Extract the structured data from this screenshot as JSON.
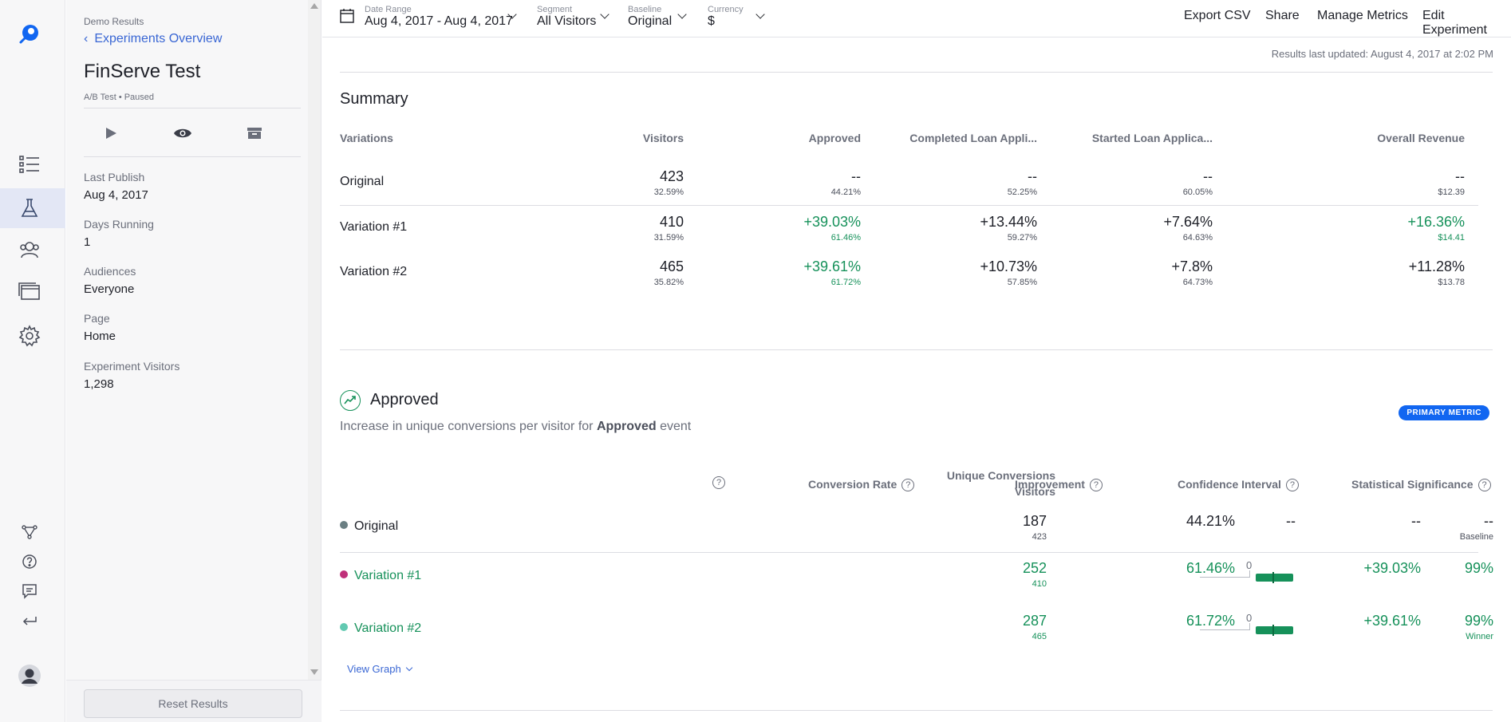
{
  "colors": {
    "brand": "#1166f1",
    "link": "#3a67d4",
    "positive": "#16915a",
    "original_dot": "#6b7f83",
    "var1_dot": "#c0307a",
    "var2_dot": "#62c9b1"
  },
  "rail": {
    "icons": [
      "rocket-logo-icon",
      "list-icon",
      "flask-icon",
      "audiences-icon",
      "pages-icon",
      "settings-icon",
      "integrations-icon",
      "help-icon",
      "feedback-icon",
      "exit-icon",
      "user-avatar-icon"
    ]
  },
  "side": {
    "crumb": "Demo Results",
    "back_link": "Experiments Overview",
    "title": "FinServe Test",
    "meta": "A/B Test • Paused",
    "stats": [
      {
        "label": "Last Publish",
        "value": "Aug 4, 2017"
      },
      {
        "label": "Days Running",
        "value": "1"
      },
      {
        "label": "Audiences",
        "value": "Everyone"
      },
      {
        "label": "Page",
        "value": "Home"
      },
      {
        "label": "Experiment Visitors",
        "value": "1,298"
      }
    ],
    "reset_label": "Reset Results"
  },
  "topbar": {
    "date_range": {
      "label": "Date Range",
      "value": "Aug 4, 2017 - Aug 4, 2017"
    },
    "segment": {
      "label": "Segment",
      "value": "All Visitors"
    },
    "baseline": {
      "label": "Baseline",
      "value": "Original"
    },
    "currency": {
      "label": "Currency",
      "value": "$"
    },
    "links": [
      "Export CSV",
      "Share",
      "Manage Metrics",
      "Edit Experiment"
    ]
  },
  "updated": "Results last updated: August 4, 2017 at 2:02 PM",
  "summary": {
    "title": "Summary",
    "headers": [
      "Variations",
      "Visitors",
      "Approved",
      "Completed Loan Appli...",
      "Started Loan Applica...",
      "Overall Revenue"
    ],
    "rows": [
      {
        "name": "Original",
        "visitors": [
          "423",
          "32.59%"
        ],
        "approved": [
          "--",
          "44.21%"
        ],
        "completed": [
          "--",
          "52.25%"
        ],
        "started": [
          "--",
          "60.05%"
        ],
        "revenue": [
          "--",
          "$12.39"
        ]
      },
      {
        "name": "Variation #1",
        "visitors": [
          "410",
          "31.59%"
        ],
        "approved": [
          "+39.03%",
          "61.46%"
        ],
        "completed": [
          "+13.44%",
          "59.27%"
        ],
        "started": [
          "+7.64%",
          "64.63%"
        ],
        "revenue": [
          "+16.36%",
          "$14.41"
        ]
      },
      {
        "name": "Variation #2",
        "visitors": [
          "465",
          "35.82%"
        ],
        "approved": [
          "+39.61%",
          "61.72%"
        ],
        "completed": [
          "+10.73%",
          "57.85%"
        ],
        "started": [
          "+7.8%",
          "64.73%"
        ],
        "revenue": [
          "+11.28%",
          "$13.78"
        ]
      }
    ]
  },
  "approved": {
    "title": "Approved",
    "sub_prefix": "Increase in unique conversions per visitor for",
    "sub_event": "Approved",
    "sub_suffix": "event",
    "badge": "PRIMARY METRIC",
    "headers": {
      "conv_line1": "Unique Conversions",
      "conv_line2": "Visitors",
      "rate": "Conversion Rate",
      "improvement": "Improvement",
      "ci": "Confidence Interval",
      "sig": "Statistical Significance",
      "q": "?"
    },
    "rows": [
      {
        "name": "Original",
        "conv": "187",
        "visitors": "423",
        "rate": "44.21%",
        "improvement": "--",
        "ci": "--",
        "sig": "--",
        "sig_note": "Baseline"
      },
      {
        "name": "Variation #1",
        "conv": "252",
        "visitors": "410",
        "rate": "61.46%",
        "improvement": "+39.03%",
        "ci_zero": "0",
        "sig": "99%",
        "sig_note": ""
      },
      {
        "name": "Variation #2",
        "conv": "287",
        "visitors": "465",
        "rate": "61.72%",
        "improvement": "+39.61%",
        "ci_zero": "0",
        "sig": "99%",
        "sig_note": "Winner"
      }
    ],
    "view_graph": "View Graph"
  }
}
